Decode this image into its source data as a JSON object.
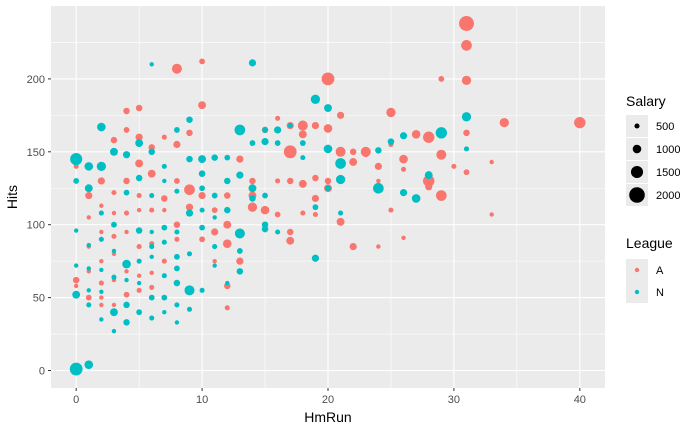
{
  "chart_data": {
    "type": "scatter",
    "title": "",
    "xlabel": "HmRun",
    "ylabel": "Hits",
    "xlim": [
      -2,
      42
    ],
    "ylim": [
      -12,
      250
    ],
    "xticks": [
      0,
      10,
      20,
      30,
      40
    ],
    "yticks": [
      0,
      50,
      100,
      150,
      200
    ],
    "grid": true,
    "legend_position": "right",
    "colors": {
      "A": "#F8766D",
      "N": "#00BFC4",
      "panel": "#EBEBEB",
      "grid": "#FFFFFF",
      "size_legend": "#000000"
    },
    "size_legend": {
      "title": "Salary",
      "values": [
        500,
        1000,
        1500,
        2000
      ]
    },
    "color_legend": {
      "title": "League",
      "items": [
        "A",
        "N"
      ]
    },
    "series": [
      {
        "name": "A",
        "points": [
          [
            31,
            238,
            1900
          ],
          [
            31,
            223,
            1300
          ],
          [
            31,
            199,
            1100
          ],
          [
            29,
            200,
            600
          ],
          [
            40,
            170,
            1400
          ],
          [
            34,
            170,
            1100
          ],
          [
            31,
            163,
            700
          ],
          [
            33,
            143,
            400
          ],
          [
            30,
            140,
            500
          ],
          [
            31,
            136,
            600
          ],
          [
            33,
            107,
            400
          ],
          [
            28,
            130,
            1400
          ],
          [
            29,
            148,
            1200
          ],
          [
            28,
            126,
            800
          ],
          [
            29,
            120,
            1300
          ],
          [
            27,
            162,
            1000
          ],
          [
            28,
            160,
            1400
          ],
          [
            26,
            145,
            1000
          ],
          [
            24,
            140,
            800
          ],
          [
            23,
            150,
            1200
          ],
          [
            22,
            143,
            900
          ],
          [
            21,
            175,
            800
          ],
          [
            21,
            150,
            1200
          ],
          [
            20,
            200,
            1600
          ],
          [
            20,
            166,
            1000
          ],
          [
            20,
            130,
            700
          ],
          [
            19,
            168,
            800
          ],
          [
            18,
            162,
            900
          ],
          [
            18,
            168,
            1200
          ],
          [
            17,
            150,
            1600
          ],
          [
            17,
            168,
            800
          ],
          [
            18,
            128,
            900
          ],
          [
            17,
            130,
            700
          ],
          [
            17,
            95,
            700
          ],
          [
            17,
            89,
            900
          ],
          [
            18,
            108,
            500
          ],
          [
            19,
            118,
            800
          ],
          [
            19,
            132,
            700
          ],
          [
            19,
            107,
            500
          ],
          [
            20,
            125,
            900
          ],
          [
            22,
            150,
            700
          ],
          [
            21,
            102,
            900
          ],
          [
            22,
            85,
            800
          ],
          [
            24,
            85,
            400
          ],
          [
            23,
            148,
            500
          ],
          [
            25,
            177,
            1100
          ],
          [
            26,
            138,
            500
          ],
          [
            25,
            110,
            500
          ],
          [
            24,
            130,
            400
          ],
          [
            26,
            91,
            400
          ],
          [
            25,
            155,
            500
          ],
          [
            16,
            173,
            500
          ],
          [
            15,
            165,
            700
          ],
          [
            15,
            110,
            1000
          ],
          [
            16,
            107,
            600
          ],
          [
            16,
            130,
            500
          ],
          [
            14,
            120,
            900
          ],
          [
            14,
            130,
            700
          ],
          [
            14,
            112,
            1100
          ],
          [
            13,
            145,
            800
          ],
          [
            12,
            120,
            700
          ],
          [
            12,
            100,
            900
          ],
          [
            12,
            87,
            1000
          ],
          [
            13,
            75,
            800
          ],
          [
            11,
            120,
            500
          ],
          [
            11,
            110,
            600
          ],
          [
            11,
            95,
            800
          ],
          [
            11,
            75,
            400
          ],
          [
            12,
            58,
            700
          ],
          [
            12,
            43,
            500
          ],
          [
            10,
            212,
            600
          ],
          [
            10,
            182,
            900
          ],
          [
            10,
            135,
            700
          ],
          [
            10,
            120,
            800
          ],
          [
            10,
            90,
            600
          ],
          [
            9,
            163,
            700
          ],
          [
            9,
            124,
            1300
          ],
          [
            9,
            112,
            800
          ],
          [
            8,
            207,
            1200
          ],
          [
            8,
            155,
            800
          ],
          [
            8,
            130,
            600
          ],
          [
            8,
            100,
            700
          ],
          [
            8,
            90,
            500
          ],
          [
            7,
            160,
            500
          ],
          [
            7,
            118,
            700
          ],
          [
            7,
            110,
            400
          ],
          [
            7,
            75,
            500
          ],
          [
            6,
            153,
            700
          ],
          [
            6,
            135,
            900
          ],
          [
            6,
            110,
            500
          ],
          [
            6,
            87,
            500
          ],
          [
            6,
            67,
            400
          ],
          [
            6,
            57,
            500
          ],
          [
            5,
            180,
            700
          ],
          [
            5,
            160,
            800
          ],
          [
            5,
            142,
            900
          ],
          [
            5,
            120,
            500
          ],
          [
            5,
            110,
            400
          ],
          [
            5,
            85,
            500
          ],
          [
            5,
            65,
            400
          ],
          [
            5,
            55,
            500
          ],
          [
            4,
            178,
            700
          ],
          [
            4,
            165,
            600
          ],
          [
            4,
            130,
            700
          ],
          [
            4,
            108,
            500
          ],
          [
            4,
            95,
            400
          ],
          [
            4,
            68,
            400
          ],
          [
            4,
            52,
            600
          ],
          [
            3,
            158,
            700
          ],
          [
            3,
            122,
            500
          ],
          [
            3,
            108,
            400
          ],
          [
            3,
            92,
            500
          ],
          [
            3,
            80,
            400
          ],
          [
            3,
            62,
            400
          ],
          [
            3,
            45,
            400
          ],
          [
            2,
            130,
            800
          ],
          [
            2,
            113,
            400
          ],
          [
            2,
            95,
            400
          ],
          [
            2,
            75,
            400
          ],
          [
            2,
            60,
            500
          ],
          [
            2,
            50,
            400
          ],
          [
            2,
            45,
            400
          ],
          [
            1,
            120,
            800
          ],
          [
            1,
            105,
            400
          ],
          [
            1,
            85,
            400
          ],
          [
            1,
            68,
            400
          ],
          [
            1,
            50,
            600
          ],
          [
            0,
            62,
            700
          ],
          [
            0,
            58,
            400
          ],
          [
            0,
            140,
            500
          ]
        ]
      },
      {
        "name": "N",
        "points": [
          [
            0,
            1,
            1600
          ],
          [
            1,
            4,
            1000
          ],
          [
            0,
            145,
            1500
          ],
          [
            0,
            130,
            600
          ],
          [
            0,
            52,
            900
          ],
          [
            0,
            96,
            400
          ],
          [
            0,
            72,
            400
          ],
          [
            1,
            140,
            1000
          ],
          [
            1,
            125,
            900
          ],
          [
            1,
            86,
            400
          ],
          [
            1,
            70,
            400
          ],
          [
            1,
            55,
            400
          ],
          [
            1,
            45,
            500
          ],
          [
            2,
            167,
            1000
          ],
          [
            2,
            140,
            1100
          ],
          [
            2,
            108,
            500
          ],
          [
            2,
            90,
            500
          ],
          [
            2,
            69,
            400
          ],
          [
            2,
            54,
            400
          ],
          [
            2,
            35,
            400
          ],
          [
            3,
            150,
            900
          ],
          [
            3,
            100,
            600
          ],
          [
            3,
            82,
            400
          ],
          [
            3,
            64,
            500
          ],
          [
            3,
            40,
            900
          ],
          [
            3,
            27,
            400
          ],
          [
            4,
            148,
            800
          ],
          [
            4,
            122,
            600
          ],
          [
            4,
            73,
            1000
          ],
          [
            4,
            62,
            400
          ],
          [
            4,
            45,
            700
          ],
          [
            4,
            33,
            700
          ],
          [
            5,
            156,
            900
          ],
          [
            5,
            132,
            700
          ],
          [
            5,
            96,
            700
          ],
          [
            5,
            75,
            500
          ],
          [
            5,
            60,
            400
          ],
          [
            5,
            40,
            600
          ],
          [
            6,
            210,
            400
          ],
          [
            6,
            150,
            700
          ],
          [
            6,
            120,
            500
          ],
          [
            6,
            95,
            400
          ],
          [
            6,
            85,
            500
          ],
          [
            6,
            78,
            400
          ],
          [
            6,
            50,
            600
          ],
          [
            6,
            36,
            500
          ],
          [
            7,
            140,
            500
          ],
          [
            7,
            130,
            400
          ],
          [
            7,
            98,
            600
          ],
          [
            7,
            88,
            500
          ],
          [
            7,
            65,
            500
          ],
          [
            7,
            50,
            600
          ],
          [
            7,
            40,
            400
          ],
          [
            8,
            165,
            600
          ],
          [
            8,
            123,
            500
          ],
          [
            8,
            95,
            500
          ],
          [
            8,
            78,
            600
          ],
          [
            8,
            70,
            600
          ],
          [
            8,
            60,
            700
          ],
          [
            8,
            45,
            500
          ],
          [
            8,
            33,
            400
          ],
          [
            9,
            172,
            700
          ],
          [
            9,
            145,
            700
          ],
          [
            9,
            108,
            800
          ],
          [
            9,
            80,
            500
          ],
          [
            9,
            55,
            1200
          ],
          [
            9,
            42,
            500
          ],
          [
            10,
            145,
            900
          ],
          [
            10,
            135,
            700
          ],
          [
            10,
            125,
            600
          ],
          [
            10,
            110,
            500
          ],
          [
            10,
            98,
            600
          ],
          [
            10,
            55,
            500
          ],
          [
            11,
            146,
            700
          ],
          [
            11,
            105,
            400
          ],
          [
            11,
            120,
            600
          ],
          [
            11,
            85,
            500
          ],
          [
            11,
            72,
            400
          ],
          [
            12,
            146,
            600
          ],
          [
            12,
            130,
            700
          ],
          [
            12,
            110,
            700
          ],
          [
            12,
            60,
            400
          ],
          [
            13,
            165,
            1300
          ],
          [
            13,
            134,
            800
          ],
          [
            13,
            94,
            1200
          ],
          [
            13,
            82,
            600
          ],
          [
            13,
            68,
            700
          ],
          [
            14,
            211,
            800
          ],
          [
            14,
            156,
            600
          ],
          [
            14,
            125,
            900
          ],
          [
            14,
            118,
            700
          ],
          [
            15,
            165,
            600
          ],
          [
            15,
            157,
            800
          ],
          [
            15,
            120,
            600
          ],
          [
            15,
            100,
            700
          ],
          [
            15,
            97,
            700
          ],
          [
            16,
            165,
            800
          ],
          [
            16,
            156,
            600
          ],
          [
            16,
            95,
            500
          ],
          [
            17,
            168,
            500
          ],
          [
            18,
            156,
            600
          ],
          [
            18,
            146,
            500
          ],
          [
            19,
            186,
            1100
          ],
          [
            19,
            112,
            600
          ],
          [
            19,
            77,
            800
          ],
          [
            20,
            180,
            900
          ],
          [
            20,
            152,
            1000
          ],
          [
            20,
            125,
            600
          ],
          [
            21,
            142,
            1300
          ],
          [
            21,
            131,
            1100
          ],
          [
            21,
            108,
            500
          ],
          [
            24,
            125,
            1300
          ],
          [
            24,
            151,
            700
          ],
          [
            25,
            157,
            700
          ],
          [
            26,
            161,
            800
          ],
          [
            26,
            122,
            800
          ],
          [
            27,
            118,
            1000
          ],
          [
            28,
            134,
            900
          ],
          [
            29,
            163,
            1400
          ],
          [
            29,
            164,
            700
          ],
          [
            31,
            174,
            1100
          ],
          [
            31,
            152,
            500
          ]
        ]
      }
    ]
  }
}
